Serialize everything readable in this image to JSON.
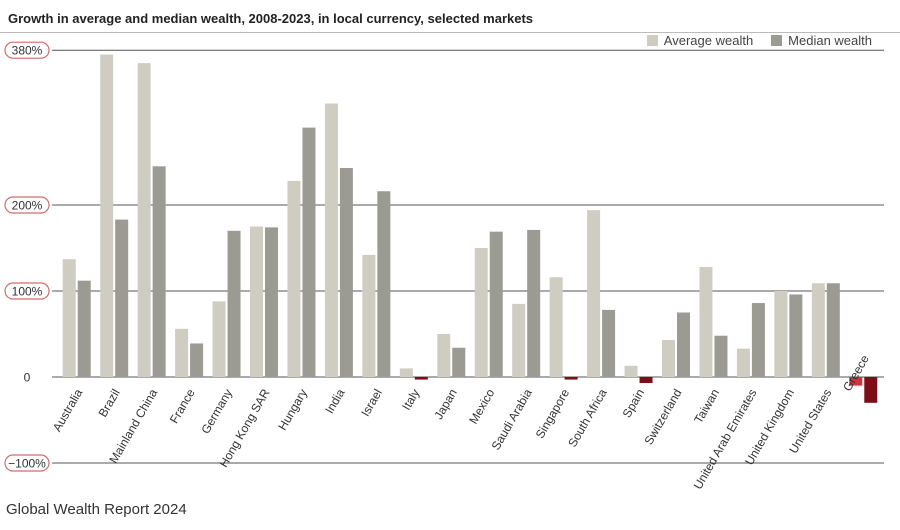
{
  "chart_data": {
    "type": "bar",
    "title": "Growth in average and median wealth, 2008-2023, in local currency, selected markets",
    "xlabel": "",
    "ylabel": "",
    "ylim": [
      -100,
      380
    ],
    "yticks": [
      {
        "value": 380,
        "label": "380%",
        "highlight": true
      },
      {
        "value": 200,
        "label": "200%",
        "highlight": true
      },
      {
        "value": 100,
        "label": "100%",
        "highlight": true
      },
      {
        "value": 0,
        "label": "0",
        "highlight": false
      },
      {
        "value": -100,
        "label": "−100%",
        "highlight": true
      }
    ],
    "categories": [
      "Australia",
      "Brazil",
      "Mainland China",
      "France",
      "Germany",
      "Hong Kong SAR",
      "Hungary",
      "India",
      "Israel",
      "Italy",
      "Japan",
      "Mexico",
      "Saudi Arabia",
      "Singapore",
      "South Africa",
      "Spain",
      "Switzerland",
      "Taiwan",
      "United Arab Emirates",
      "United Kingdom",
      "United States",
      "Greece"
    ],
    "series": [
      {
        "name": "Average wealth",
        "color": "#cfcdc2",
        "negative_color": "#d4303f",
        "values": [
          137,
          375,
          365,
          56,
          88,
          175,
          228,
          318,
          142,
          10,
          50,
          150,
          85,
          116,
          194,
          13,
          43,
          128,
          33,
          100,
          109,
          -10
        ]
      },
      {
        "name": "Median wealth",
        "color": "#9b9a93",
        "negative_color": "#7a0f17",
        "values": [
          112,
          183,
          245,
          39,
          170,
          174,
          290,
          243,
          216,
          -3,
          34,
          169,
          171,
          -3,
          78,
          -7,
          75,
          48,
          86,
          96,
          109,
          -30
        ]
      }
    ],
    "legend": "top-right",
    "grid": true
  },
  "footer": {
    "source": "Global Wealth Report 2024"
  }
}
